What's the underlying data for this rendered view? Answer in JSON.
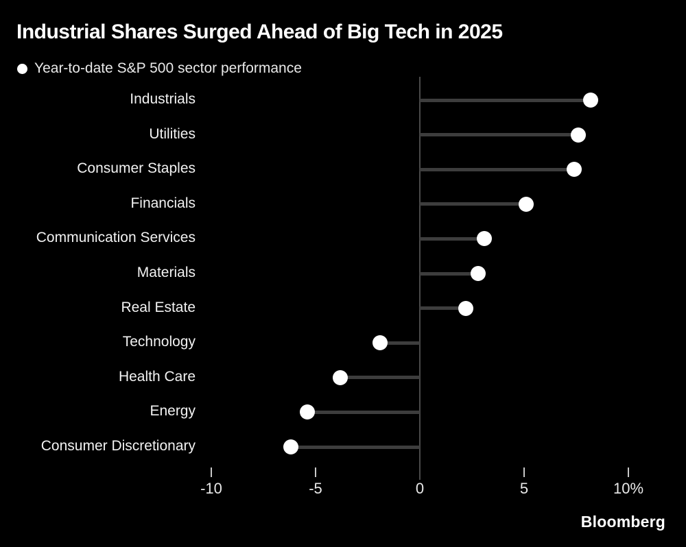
{
  "header": {
    "title": "Industrial Shares Surged Ahead of Big Tech in 2025",
    "legend_label": "Year-to-date S&P 500 sector performance"
  },
  "chart_data": {
    "type": "lollipop-bar",
    "orientation": "horizontal",
    "title": "Industrial Shares Surged Ahead of Big Tech in 2025",
    "subtitle": "Year-to-date S&P 500 sector performance",
    "unit": "%",
    "categories": [
      "Industrials",
      "Utilities",
      "Consumer Staples",
      "Financials",
      "Communication Services",
      "Materials",
      "Real Estate",
      "Technology",
      "Health Care",
      "Energy",
      "Consumer Discretionary"
    ],
    "values": [
      8.2,
      7.6,
      7.4,
      5.1,
      3.1,
      2.8,
      2.2,
      -1.9,
      -3.8,
      -5.4,
      -6.2
    ],
    "xticks": [
      {
        "value": -10,
        "label": "-10"
      },
      {
        "value": -5,
        "label": "-5"
      },
      {
        "value": 0,
        "label": "0"
      },
      {
        "value": 5,
        "label": "5"
      },
      {
        "value": 10,
        "label": "10%"
      }
    ],
    "xlim": [
      -12,
      13
    ],
    "grid": false,
    "legend_position": "top-left"
  },
  "colors": {
    "background": "#000000",
    "title_text": "#ffffff",
    "label_text": "#f2f2f2",
    "axis_line": "#4a4a4a",
    "stem": "#3d3d3d",
    "dot": "#ffffff",
    "tick": "#c9c9c9"
  },
  "footer": {
    "brand": "Bloomberg"
  }
}
